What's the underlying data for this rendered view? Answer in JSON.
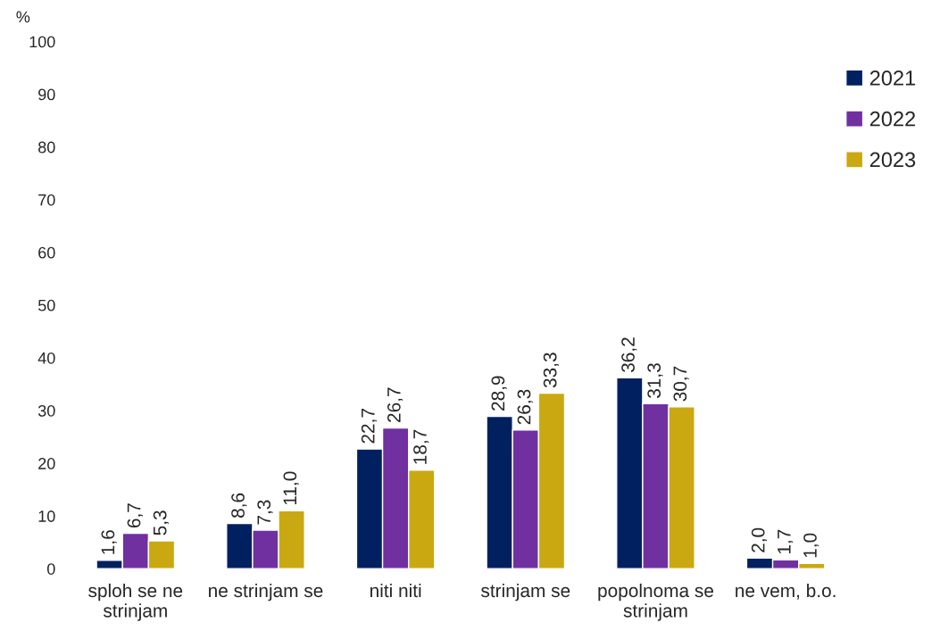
{
  "chart_data": {
    "type": "bar",
    "ylabel": "%",
    "categories": [
      "sploh se ne strinjam",
      "ne strinjam se",
      "niti niti",
      "strinjam se",
      "popolnoma se strinjam",
      "ne vem, b.o."
    ],
    "series": [
      {
        "name": "2021",
        "color": "#002060",
        "values": [
          1.6,
          8.6,
          22.7,
          28.9,
          36.2,
          2.0
        ],
        "value_labels": [
          "1,6",
          "8,6",
          "22,7",
          "28,9",
          "36,2",
          "2,0"
        ]
      },
      {
        "name": "2022",
        "color": "#7030a0",
        "values": [
          6.7,
          7.3,
          26.7,
          26.3,
          31.3,
          1.7
        ],
        "value_labels": [
          "6,7",
          "7,3",
          "26,7",
          "26,3",
          "31,3",
          "1,7"
        ]
      },
      {
        "name": "2023",
        "color": "#c9a812",
        "values": [
          5.3,
          11.0,
          18.7,
          33.3,
          30.7,
          1.0
        ],
        "value_labels": [
          "5,3",
          "11,0",
          "18,7",
          "33,3",
          "30,7",
          "1,0"
        ]
      }
    ],
    "ylim": [
      0,
      100
    ],
    "yticks": [
      0,
      10,
      20,
      30,
      40,
      50,
      60,
      70,
      80,
      90,
      100
    ],
    "grid": false,
    "legend": "right"
  }
}
